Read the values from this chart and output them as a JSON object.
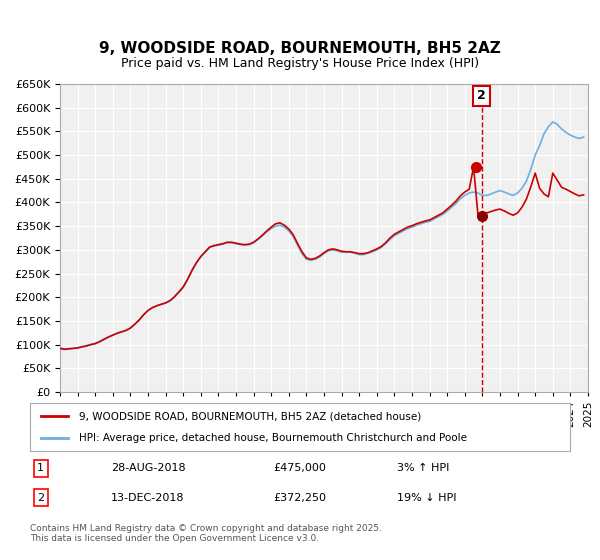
{
  "title": "9, WOODSIDE ROAD, BOURNEMOUTH, BH5 2AZ",
  "subtitle": "Price paid vs. HM Land Registry's House Price Index (HPI)",
  "title_fontsize": 11,
  "subtitle_fontsize": 9,
  "background_color": "#ffffff",
  "plot_bg_color": "#f0f0f0",
  "grid_color": "#ffffff",
  "hpi_color": "#6ab0e0",
  "price_color": "#cc0000",
  "vline_color": "#cc0000",
  "marker_color_1": "#cc0000",
  "marker_color_2": "#8b0000",
  "annotation_box_color": "#cc0000",
  "ylim": [
    0,
    650000
  ],
  "ytick_step": 50000,
  "xmin": 1995,
  "xmax": 2025,
  "transaction1_date": 2018.65,
  "transaction1_price": 475000,
  "transaction1_label": "1",
  "transaction1_info": "28-AUG-2018    £475,000    3% ↑ HPI",
  "transaction2_date": 2018.95,
  "transaction2_price": 372250,
  "transaction2_label": "2",
  "transaction2_info": "13-DEC-2018    £372,250    19% ↓ HPI",
  "legend_line1": "9, WOODSIDE ROAD, BOURNEMOUTH, BH5 2AZ (detached house)",
  "legend_line2": "HPI: Average price, detached house, Bournemouth Christchurch and Poole",
  "footnote": "Contains HM Land Registry data © Crown copyright and database right 2025.\nThis data is licensed under the Open Government Licence v3.0.",
  "hpi_data_x": [
    1995.0,
    1995.25,
    1995.5,
    1995.75,
    1996.0,
    1996.25,
    1996.5,
    1996.75,
    1997.0,
    1997.25,
    1997.5,
    1997.75,
    1998.0,
    1998.25,
    1998.5,
    1998.75,
    1999.0,
    1999.25,
    1999.5,
    1999.75,
    2000.0,
    2000.25,
    2000.5,
    2000.75,
    2001.0,
    2001.25,
    2001.5,
    2001.75,
    2002.0,
    2002.25,
    2002.5,
    2002.75,
    2003.0,
    2003.25,
    2003.5,
    2003.75,
    2004.0,
    2004.25,
    2004.5,
    2004.75,
    2005.0,
    2005.25,
    2005.5,
    2005.75,
    2006.0,
    2006.25,
    2006.5,
    2006.75,
    2007.0,
    2007.25,
    2007.5,
    2007.75,
    2008.0,
    2008.25,
    2008.5,
    2008.75,
    2009.0,
    2009.25,
    2009.5,
    2009.75,
    2010.0,
    2010.25,
    2010.5,
    2010.75,
    2011.0,
    2011.25,
    2011.5,
    2011.75,
    2012.0,
    2012.25,
    2012.5,
    2012.75,
    2013.0,
    2013.25,
    2013.5,
    2013.75,
    2014.0,
    2014.25,
    2014.5,
    2014.75,
    2015.0,
    2015.25,
    2015.5,
    2015.75,
    2016.0,
    2016.25,
    2016.5,
    2016.75,
    2017.0,
    2017.25,
    2017.5,
    2017.75,
    2018.0,
    2018.25,
    2018.5,
    2018.75,
    2019.0,
    2019.25,
    2019.5,
    2019.75,
    2020.0,
    2020.25,
    2020.5,
    2020.75,
    2021.0,
    2021.25,
    2021.5,
    2021.75,
    2022.0,
    2022.25,
    2022.5,
    2022.75,
    2023.0,
    2023.25,
    2023.5,
    2023.75,
    2024.0,
    2024.25,
    2024.5,
    2024.75
  ],
  "hpi_data_y": [
    93000,
    91000,
    91500,
    92000,
    93500,
    96000,
    98000,
    100000,
    103000,
    107000,
    112000,
    116000,
    120000,
    124000,
    127000,
    130000,
    135000,
    143000,
    152000,
    163000,
    172000,
    178000,
    182000,
    185000,
    188000,
    192000,
    200000,
    210000,
    220000,
    237000,
    255000,
    272000,
    285000,
    295000,
    305000,
    308000,
    310000,
    312000,
    315000,
    315000,
    313000,
    311000,
    310000,
    311000,
    315000,
    322000,
    330000,
    338000,
    345000,
    350000,
    352000,
    348000,
    340000,
    328000,
    310000,
    292000,
    280000,
    278000,
    280000,
    285000,
    292000,
    298000,
    300000,
    298000,
    295000,
    295000,
    295000,
    293000,
    290000,
    290000,
    293000,
    296000,
    300000,
    305000,
    313000,
    322000,
    330000,
    335000,
    340000,
    345000,
    348000,
    352000,
    355000,
    358000,
    360000,
    365000,
    370000,
    375000,
    382000,
    390000,
    398000,
    408000,
    415000,
    420000,
    422000,
    420000,
    415000,
    415000,
    418000,
    422000,
    425000,
    422000,
    418000,
    415000,
    420000,
    430000,
    445000,
    470000,
    500000,
    520000,
    545000,
    560000,
    570000,
    565000,
    555000,
    548000,
    542000,
    538000,
    535000,
    538000
  ],
  "price_data_x": [
    1995.0,
    1995.25,
    1995.5,
    1995.75,
    1996.0,
    1996.25,
    1996.5,
    1996.75,
    1997.0,
    1997.25,
    1997.5,
    1997.75,
    1998.0,
    1998.25,
    1998.5,
    1998.75,
    1999.0,
    1999.25,
    1999.5,
    1999.75,
    2000.0,
    2000.25,
    2000.5,
    2000.75,
    2001.0,
    2001.25,
    2001.5,
    2001.75,
    2002.0,
    2002.25,
    2002.5,
    2002.75,
    2003.0,
    2003.25,
    2003.5,
    2003.75,
    2004.0,
    2004.25,
    2004.5,
    2004.75,
    2005.0,
    2005.25,
    2005.5,
    2005.75,
    2006.0,
    2006.25,
    2006.5,
    2006.75,
    2007.0,
    2007.25,
    2007.5,
    2007.75,
    2008.0,
    2008.25,
    2008.5,
    2008.75,
    2009.0,
    2009.25,
    2009.5,
    2009.75,
    2010.0,
    2010.25,
    2010.5,
    2010.75,
    2011.0,
    2011.25,
    2011.5,
    2011.75,
    2012.0,
    2012.25,
    2012.5,
    2012.75,
    2013.0,
    2013.25,
    2013.5,
    2013.75,
    2014.0,
    2014.25,
    2014.5,
    2014.75,
    2015.0,
    2015.25,
    2015.5,
    2015.75,
    2016.0,
    2016.25,
    2016.5,
    2016.75,
    2017.0,
    2017.25,
    2017.5,
    2017.75,
    2018.0,
    2018.25,
    2018.5,
    2018.75,
    2019.0,
    2019.25,
    2019.5,
    2019.75,
    2020.0,
    2020.25,
    2020.5,
    2020.75,
    2021.0,
    2021.25,
    2021.5,
    2021.75,
    2022.0,
    2022.25,
    2022.5,
    2022.75,
    2023.0,
    2023.25,
    2023.5,
    2023.75,
    2024.0,
    2024.25,
    2024.5,
    2024.75
  ],
  "price_data_y": [
    92000,
    90000,
    91000,
    92000,
    93000,
    95000,
    97000,
    100000,
    102000,
    106000,
    111000,
    116000,
    120000,
    124000,
    127000,
    130000,
    135000,
    143000,
    152000,
    163000,
    172000,
    178000,
    182000,
    185000,
    188000,
    193000,
    201000,
    211000,
    222000,
    238000,
    257000,
    273000,
    286000,
    296000,
    306000,
    309000,
    311000,
    313000,
    316000,
    316000,
    314000,
    312000,
    311000,
    312000,
    316000,
    323000,
    331000,
    340000,
    348000,
    355000,
    357000,
    352000,
    344000,
    332000,
    313000,
    296000,
    283000,
    280000,
    282000,
    287000,
    294000,
    300000,
    302000,
    300000,
    297000,
    296000,
    296000,
    294000,
    292000,
    292000,
    294000,
    298000,
    302000,
    307000,
    315000,
    325000,
    333000,
    338000,
    343000,
    348000,
    351000,
    355000,
    358000,
    361000,
    363000,
    368000,
    373000,
    378000,
    386000,
    394000,
    403000,
    414000,
    422000,
    428000,
    475000,
    372250,
    375000,
    378000,
    381000,
    384000,
    386000,
    382000,
    377000,
    373000,
    378000,
    390000,
    407000,
    433000,
    462000,
    430000,
    418000,
    412000,
    462000,
    447000,
    432000,
    428000,
    423000,
    418000,
    414000,
    416000
  ]
}
